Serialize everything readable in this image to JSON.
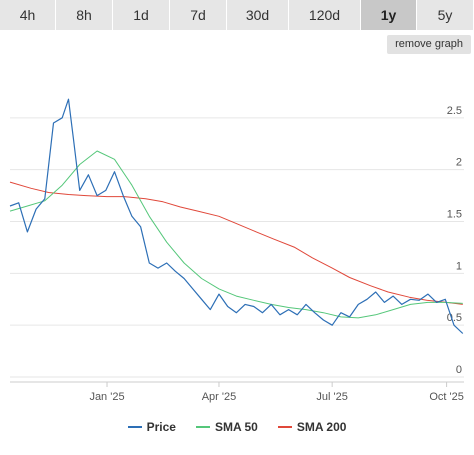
{
  "tabs": [
    {
      "label": "4h",
      "active": false
    },
    {
      "label": "8h",
      "active": false
    },
    {
      "label": "1d",
      "active": false
    },
    {
      "label": "7d",
      "active": false
    },
    {
      "label": "30d",
      "active": false
    },
    {
      "label": "120d",
      "active": false
    },
    {
      "label": "1y",
      "active": true
    },
    {
      "label": "5y",
      "active": false
    }
  ],
  "remove_graph_label": "remove graph",
  "colors": {
    "price": "#2d6fb6",
    "sma50": "#55c77a",
    "sma200": "#e0483a",
    "grid": "#e6e6e6",
    "tab_bg": "#e6e6e6",
    "tab_active_bg": "#c8c8c8"
  },
  "chart_data": {
    "type": "line",
    "x_axis_type": "datetime",
    "x_tick_labels": [
      "Jan '25",
      "Apr '25",
      "Jul '25",
      "Oct '25"
    ],
    "x_ticks": [
      "2025-01-01",
      "2025-04-01",
      "2025-07-01",
      "2025-10-01"
    ],
    "xlim": [
      "2024-10-15",
      "2025-10-15"
    ],
    "ylim": [
      0,
      3
    ],
    "y_ticks": [
      0,
      0.5,
      1,
      1.5,
      2,
      2.5
    ],
    "y_tick_labels": [
      "0",
      "0.5",
      "1",
      "1.5",
      "2",
      "2.5"
    ],
    "y_axis_position": "right",
    "grid": true,
    "legend_position": "bottom-center",
    "series": [
      {
        "name": "Price",
        "x": [
          "2024-10-15",
          "2024-10-22",
          "2024-10-29",
          "2024-11-05",
          "2024-11-12",
          "2024-11-19",
          "2024-11-26",
          "2024-12-01",
          "2024-12-05",
          "2024-12-10",
          "2024-12-17",
          "2024-12-24",
          "2024-12-31",
          "2025-01-07",
          "2025-01-14",
          "2025-01-21",
          "2025-01-28",
          "2025-02-04",
          "2025-02-11",
          "2025-02-18",
          "2025-02-25",
          "2025-03-04",
          "2025-03-11",
          "2025-03-18",
          "2025-03-25",
          "2025-04-01",
          "2025-04-08",
          "2025-04-15",
          "2025-04-22",
          "2025-04-29",
          "2025-05-06",
          "2025-05-13",
          "2025-05-20",
          "2025-05-27",
          "2025-06-03",
          "2025-06-10",
          "2025-06-17",
          "2025-06-24",
          "2025-07-01",
          "2025-07-08",
          "2025-07-15",
          "2025-07-22",
          "2025-07-29",
          "2025-08-05",
          "2025-08-12",
          "2025-08-19",
          "2025-08-26",
          "2025-09-02",
          "2025-09-09",
          "2025-09-16",
          "2025-09-23",
          "2025-09-30",
          "2025-10-07",
          "2025-10-14"
        ],
        "y": [
          1.65,
          1.68,
          1.4,
          1.62,
          1.72,
          2.45,
          2.5,
          2.68,
          2.3,
          1.8,
          1.95,
          1.75,
          1.8,
          1.98,
          1.75,
          1.55,
          1.45,
          1.1,
          1.05,
          1.1,
          1.02,
          0.95,
          0.85,
          0.75,
          0.65,
          0.8,
          0.68,
          0.62,
          0.7,
          0.68,
          0.62,
          0.7,
          0.6,
          0.65,
          0.6,
          0.7,
          0.62,
          0.55,
          0.5,
          0.62,
          0.58,
          0.7,
          0.75,
          0.82,
          0.72,
          0.78,
          0.7,
          0.75,
          0.74,
          0.8,
          0.72,
          0.75,
          0.5,
          0.42
        ]
      },
      {
        "name": "SMA 50",
        "x": [
          "2024-10-15",
          "2024-10-29",
          "2024-11-12",
          "2024-11-26",
          "2024-12-10",
          "2024-12-24",
          "2025-01-07",
          "2025-01-21",
          "2025-02-04",
          "2025-02-18",
          "2025-03-04",
          "2025-03-18",
          "2025-04-01",
          "2025-04-15",
          "2025-04-29",
          "2025-05-13",
          "2025-05-27",
          "2025-06-10",
          "2025-06-24",
          "2025-07-08",
          "2025-07-22",
          "2025-08-05",
          "2025-08-19",
          "2025-09-02",
          "2025-09-16",
          "2025-09-30",
          "2025-10-14"
        ],
        "y": [
          1.6,
          1.65,
          1.7,
          1.85,
          2.05,
          2.18,
          2.1,
          1.85,
          1.55,
          1.3,
          1.1,
          0.95,
          0.85,
          0.78,
          0.74,
          0.7,
          0.67,
          0.65,
          0.62,
          0.58,
          0.57,
          0.6,
          0.65,
          0.7,
          0.72,
          0.72,
          0.71
        ]
      },
      {
        "name": "SMA 200",
        "x": [
          "2024-10-15",
          "2024-11-01",
          "2024-11-15",
          "2024-12-01",
          "2024-12-15",
          "2025-01-01",
          "2025-01-15",
          "2025-02-01",
          "2025-02-15",
          "2025-03-01",
          "2025-03-15",
          "2025-04-01",
          "2025-04-15",
          "2025-05-01",
          "2025-05-15",
          "2025-06-01",
          "2025-06-15",
          "2025-07-01",
          "2025-07-15",
          "2025-08-01",
          "2025-08-15",
          "2025-09-01",
          "2025-09-15",
          "2025-10-01",
          "2025-10-14"
        ],
        "y": [
          1.88,
          1.82,
          1.78,
          1.76,
          1.75,
          1.74,
          1.74,
          1.72,
          1.69,
          1.64,
          1.6,
          1.55,
          1.48,
          1.4,
          1.33,
          1.25,
          1.15,
          1.05,
          0.96,
          0.88,
          0.82,
          0.77,
          0.74,
          0.72,
          0.7
        ]
      }
    ]
  }
}
